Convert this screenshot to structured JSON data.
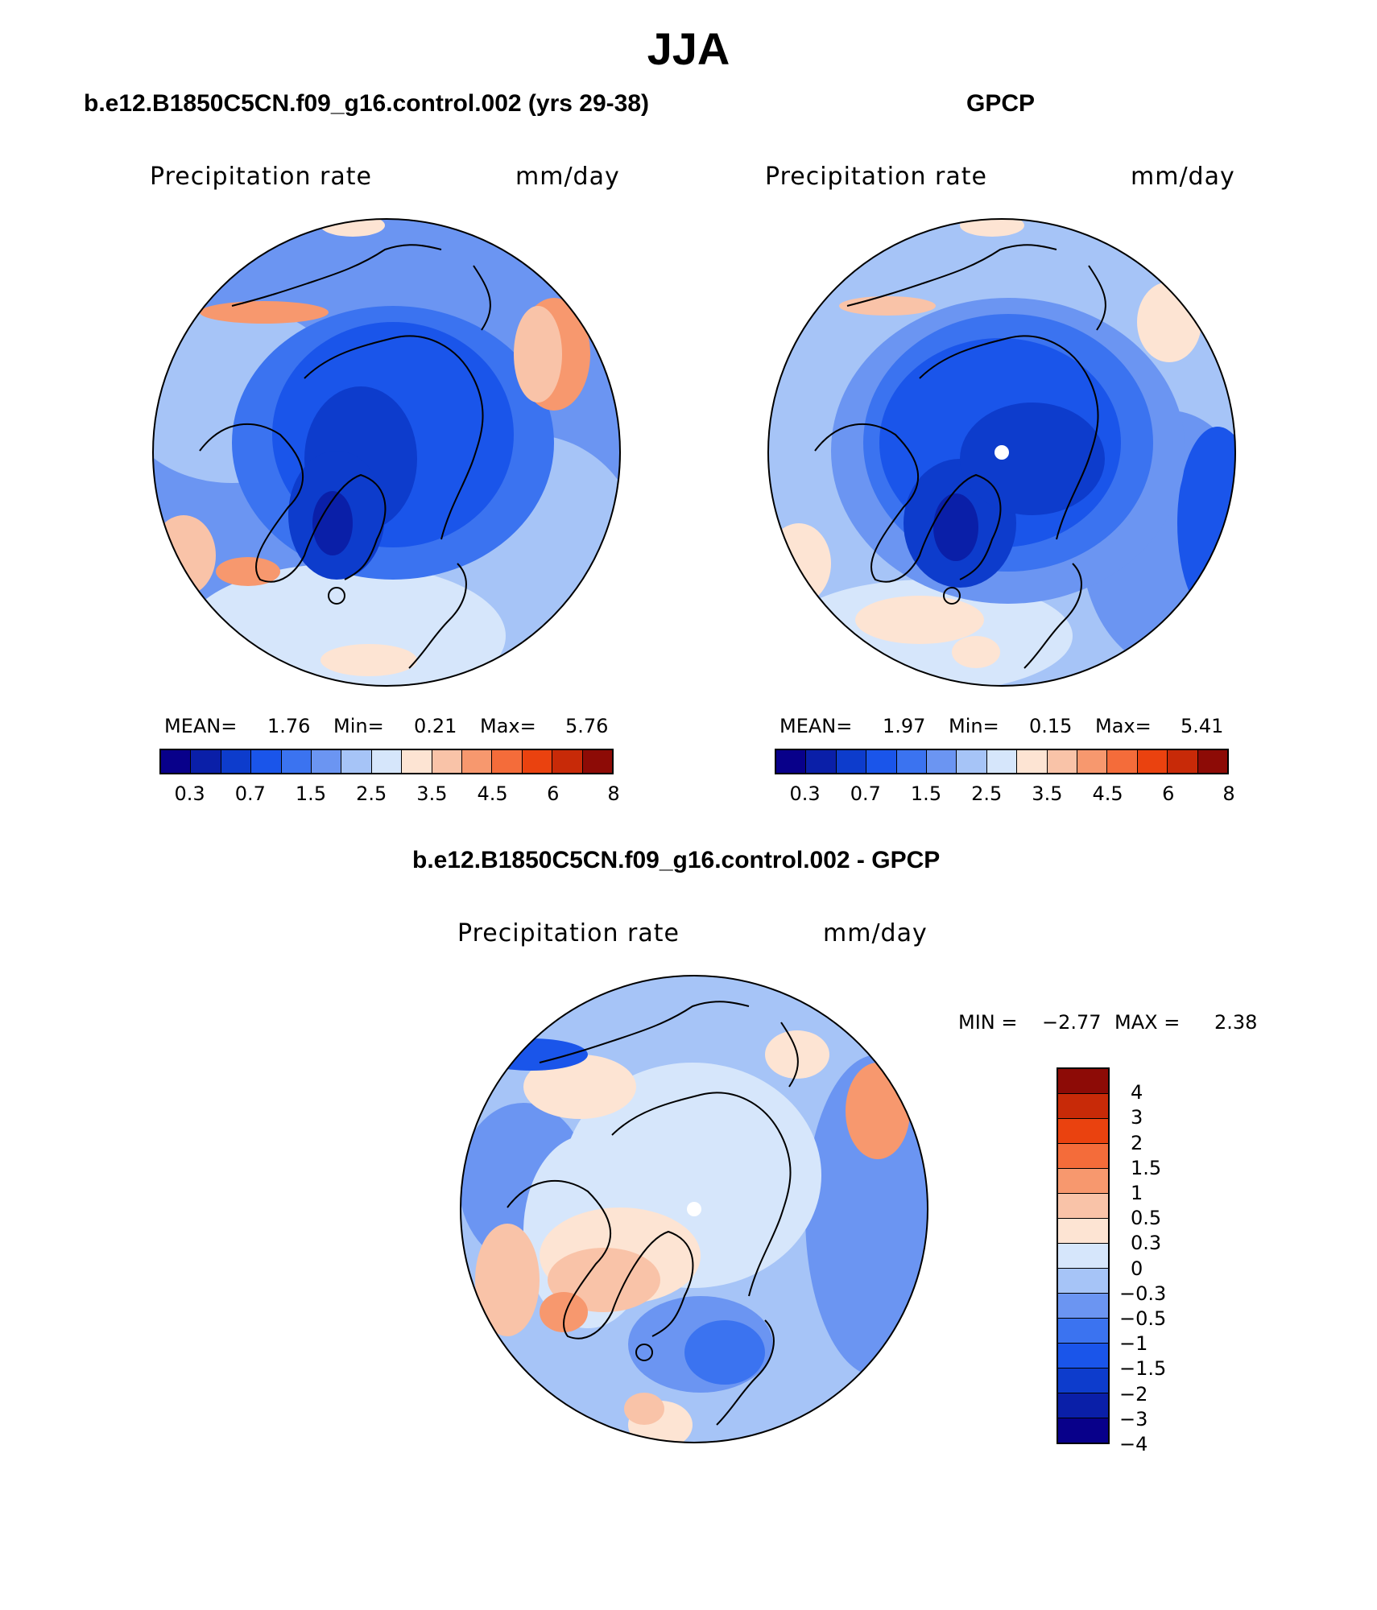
{
  "page_title": "JJA",
  "panels": [
    {
      "title": "b.e12.B1850C5CN.f09_g16.control.002 (yrs 29-38)",
      "variable": "Precipitation rate",
      "units": "mm/day",
      "stats": {
        "mean_label": "MEAN=",
        "mean": "1.76",
        "min_label": "Min=",
        "min": "0.21",
        "max_label": "Max=",
        "max": "5.76"
      }
    },
    {
      "title": "GPCP",
      "variable": "Precipitation rate",
      "units": "mm/day",
      "stats": {
        "mean_label": "MEAN=",
        "mean": "1.97",
        "min_label": "Min=",
        "min": "0.15",
        "max_label": "Max=",
        "max": "5.41"
      }
    },
    {
      "title": "b.e12.B1850C5CN.f09_g16.control.002 - GPCP",
      "variable": "Precipitation rate",
      "units": "mm/day",
      "stats": {
        "min_label": "MIN =",
        "min": "−2.77",
        "max_label": "MAX =",
        "max": "2.38"
      }
    }
  ],
  "colorbar_abs": {
    "colors": [
      "#08008a",
      "#0a1fa8",
      "#0d3ccc",
      "#1a55ea",
      "#3b73f0",
      "#6b95f2",
      "#a6c4f7",
      "#d6e6fb",
      "#fde4d3",
      "#f9c3a8",
      "#f7986e",
      "#f46c3a",
      "#ea420f",
      "#c82a08",
      "#8d0b06"
    ],
    "tick_labels": [
      "0.3",
      "0.7",
      "1.5",
      "2.5",
      "3.5",
      "4.5",
      "6",
      "8"
    ]
  },
  "colorbar_diff": {
    "colors": [
      "#8d0b06",
      "#c82a08",
      "#ea420f",
      "#f46c3a",
      "#f7986e",
      "#f9c3a8",
      "#fde4d3",
      "#d6e6fb",
      "#a6c4f7",
      "#6b95f2",
      "#3b73f0",
      "#1a55ea",
      "#0d3ccc",
      "#0a1fa8",
      "#08008a"
    ],
    "tick_labels": [
      "4",
      "3",
      "2",
      "1.5",
      "1",
      "0.5",
      "0.3",
      "0",
      "−0.3",
      "−0.5",
      "−1",
      "−1.5",
      "−2",
      "−3",
      "−4"
    ]
  },
  "map_colors": {
    "deep_blue": "#0d3ccc",
    "blue": "#1a55ea",
    "mid_blue": "#3b73f0",
    "light_blue": "#6b95f2",
    "pale_blue": "#a6c4f7",
    "very_pale_blue": "#d6e6fb",
    "pale_orange": "#fde4d3",
    "light_orange": "#f9c3a8",
    "orange": "#f7986e",
    "dark_navy": "#0a1fa8"
  }
}
